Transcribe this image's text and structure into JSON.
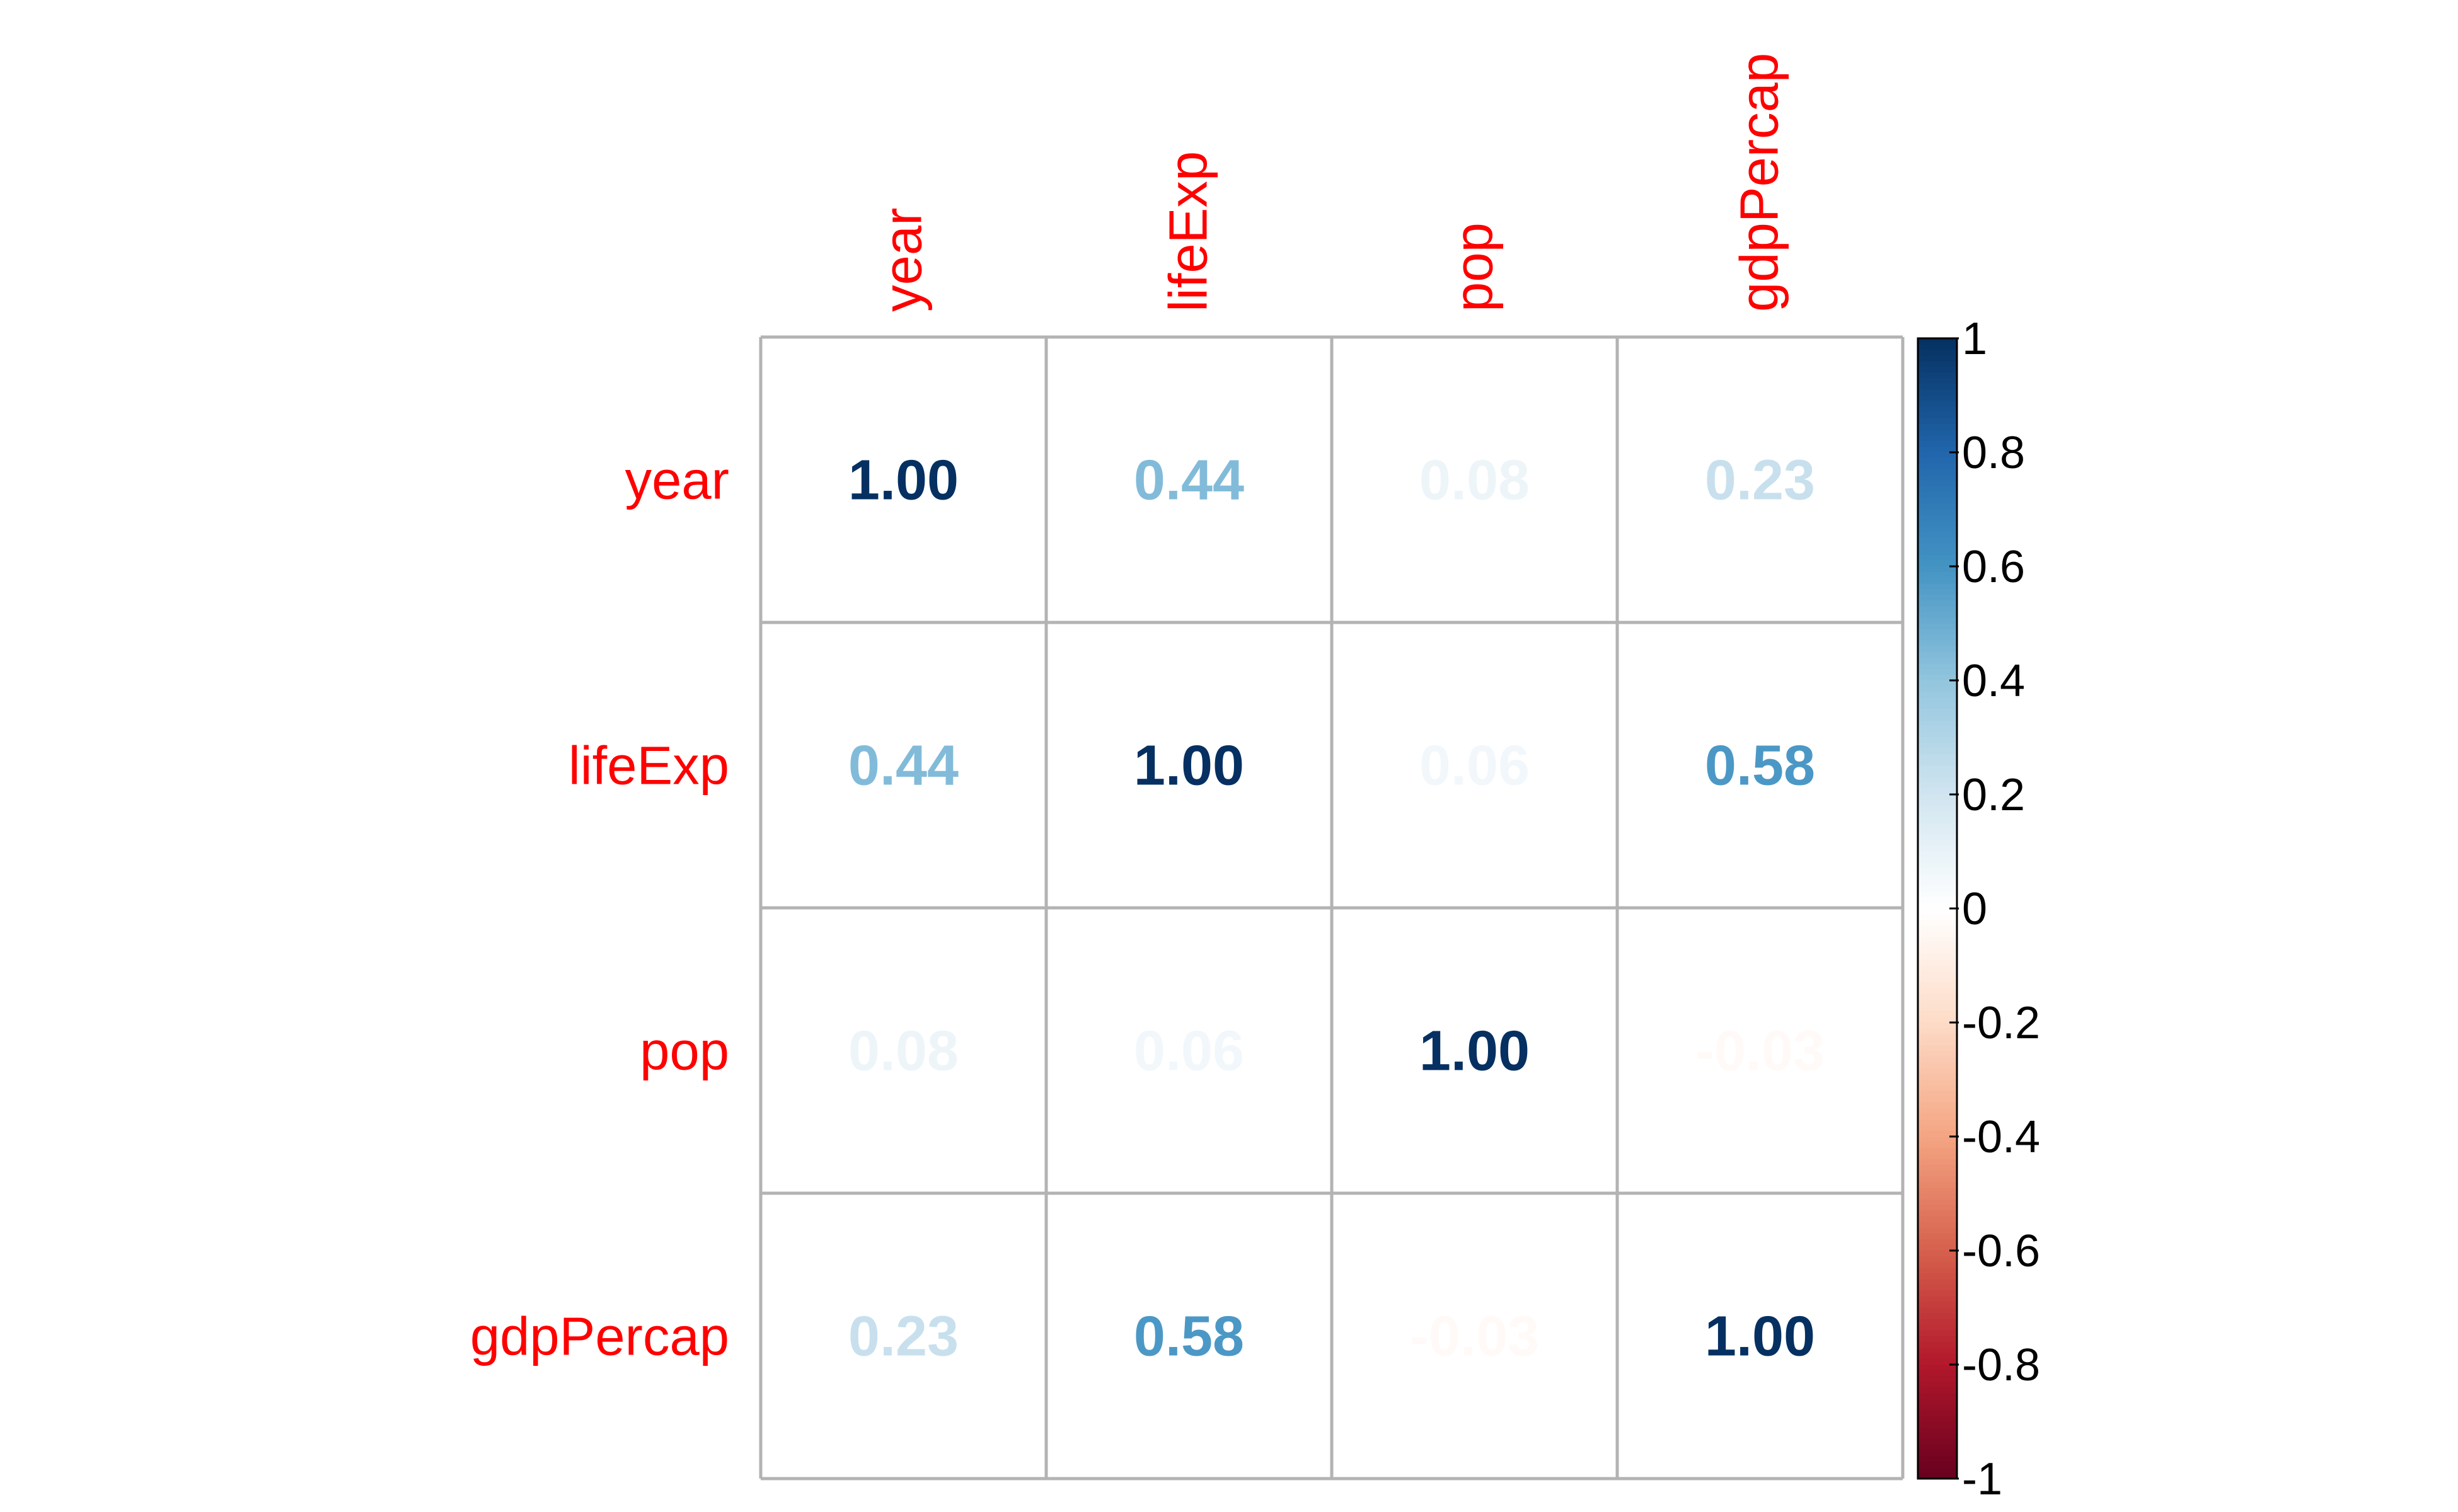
{
  "chart_data": {
    "type": "heatmap",
    "variables": [
      "year",
      "lifeExp",
      "pop",
      "gdpPercap"
    ],
    "matrix": [
      [
        1.0,
        0.44,
        0.08,
        0.23
      ],
      [
        0.44,
        1.0,
        0.06,
        0.58
      ],
      [
        0.08,
        0.06,
        1.0,
        -0.03
      ],
      [
        0.23,
        0.58,
        -0.03,
        1.0
      ]
    ],
    "value_labels": [
      [
        "1.00",
        "0.44",
        "0.08",
        "0.23"
      ],
      [
        "0.44",
        "1.00",
        "0.06",
        "0.58"
      ],
      [
        "0.08",
        "0.06",
        "1.00",
        "-0.03"
      ],
      [
        "0.23",
        "0.58",
        "-0.03",
        "1.00"
      ]
    ],
    "colorbar": {
      "ticks": [
        "1",
        "0.8",
        "0.6",
        "0.4",
        "0.2",
        "0",
        "-0.2",
        "-0.4",
        "-0.6",
        "-0.8",
        "-1"
      ],
      "range": [
        -1,
        1
      ],
      "palette": [
        "#67001F",
        "#B2182B",
        "#D6604D",
        "#F4A582",
        "#FDDBC7",
        "#FFFFFF",
        "#D1E5F0",
        "#92C5DE",
        "#4393C3",
        "#2166AC",
        "#053061"
      ]
    },
    "label_color": "#FF0000",
    "grid_color": "#B3B3B3"
  }
}
